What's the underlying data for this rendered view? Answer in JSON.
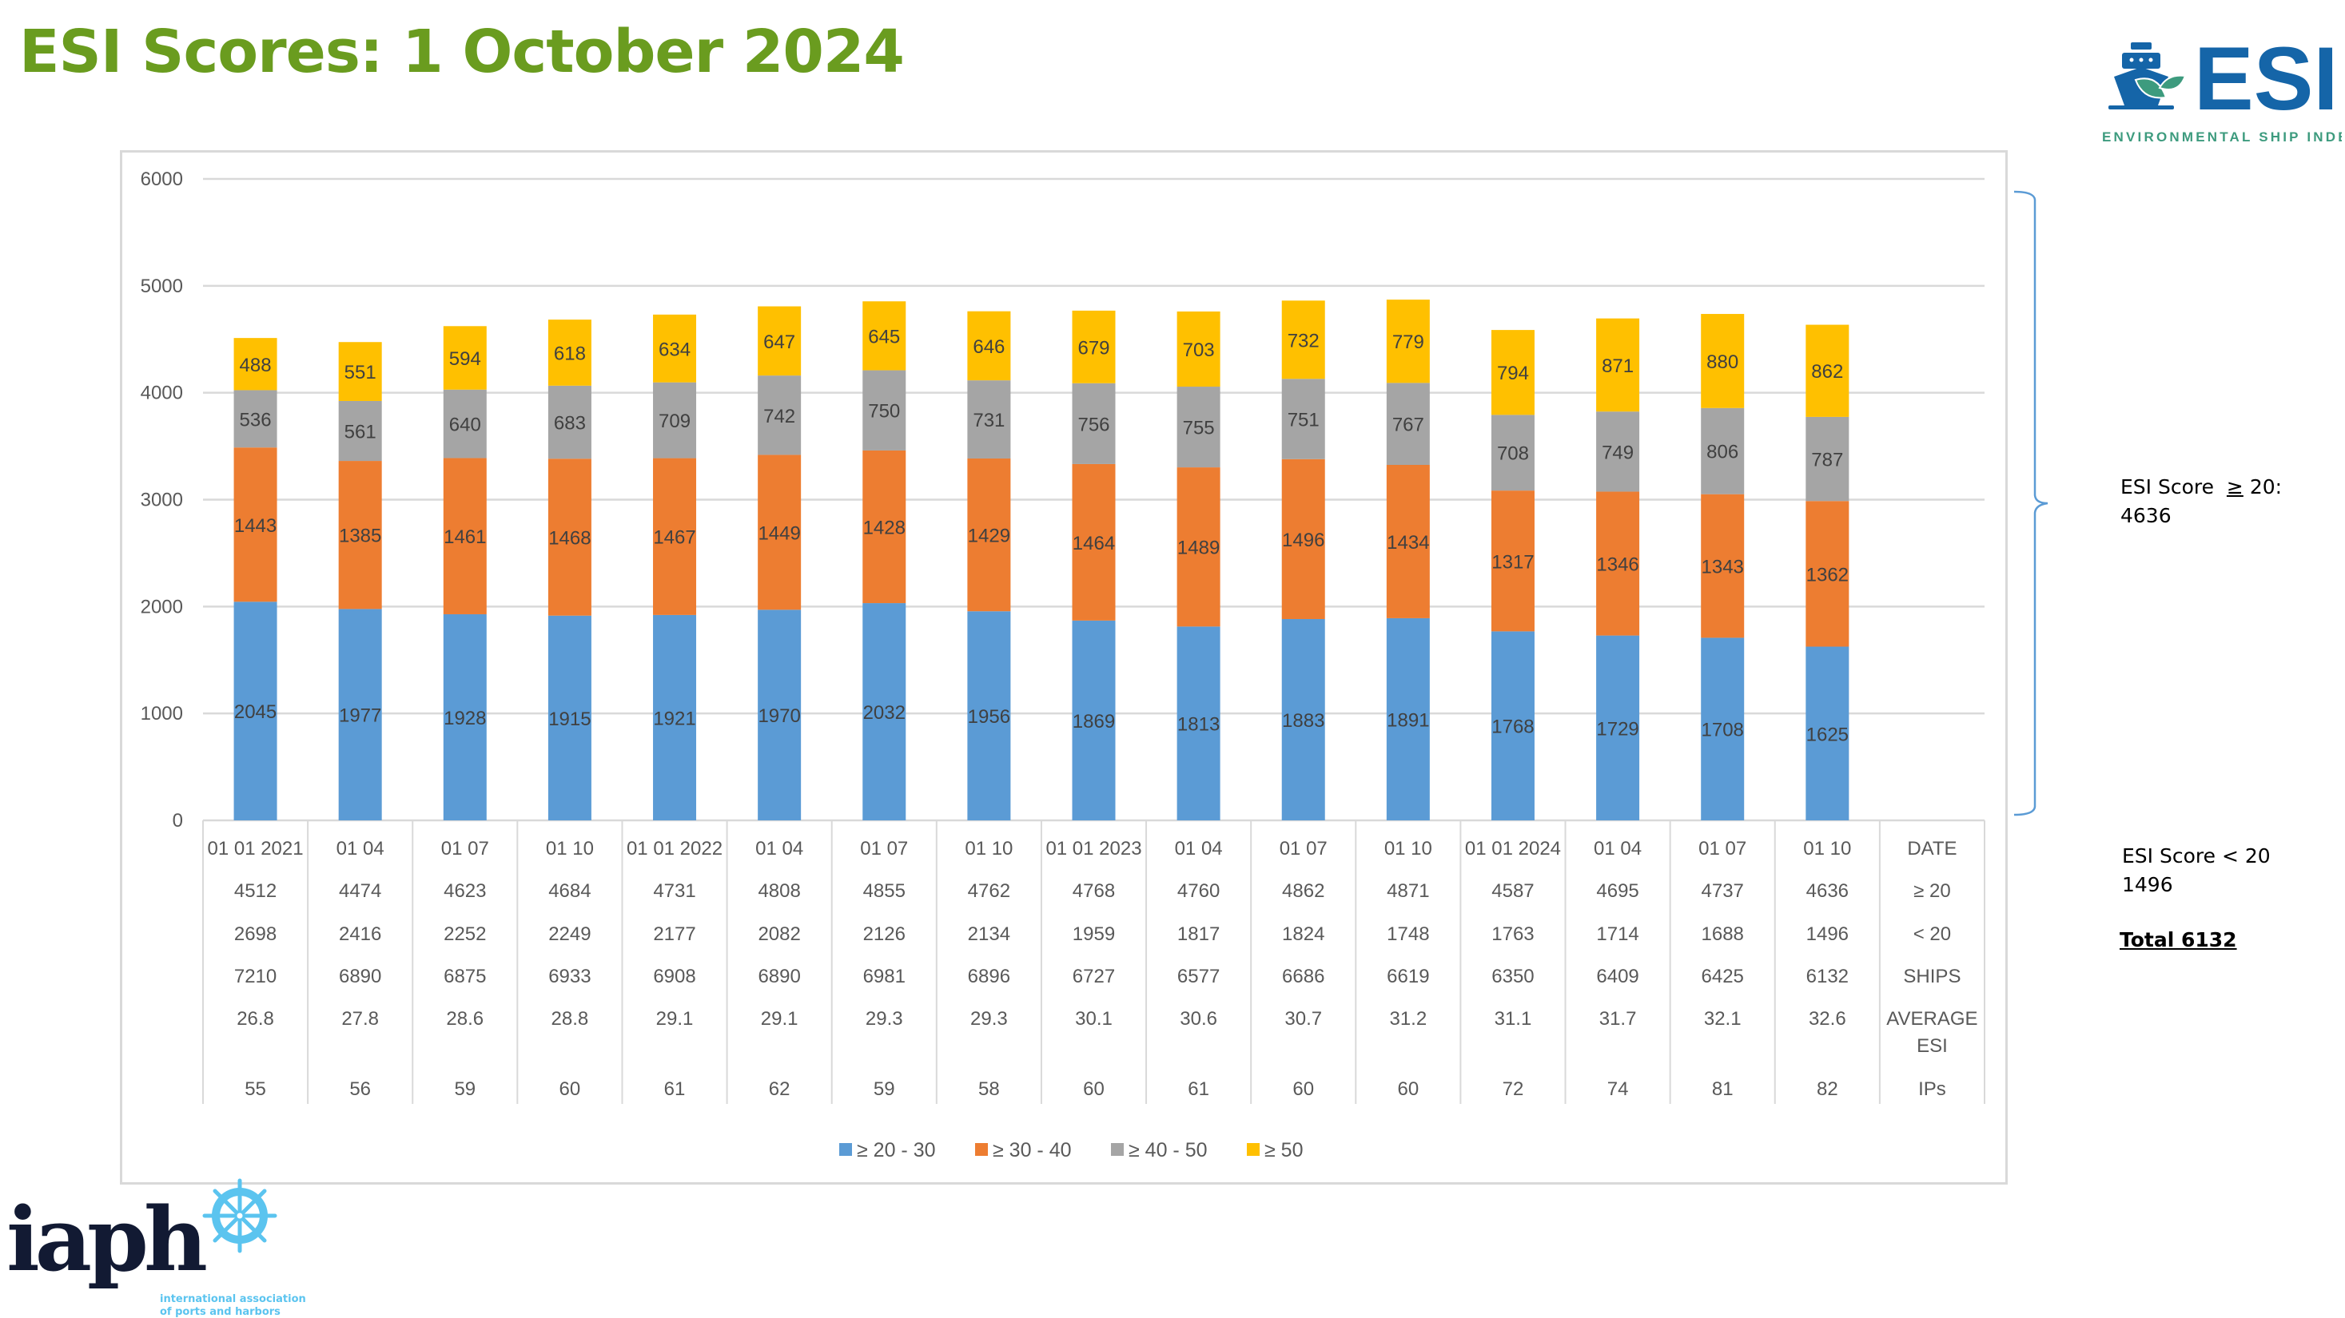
{
  "title": "ESI Scores: 1 October 2024",
  "chart_data": {
    "type": "bar",
    "stacked": true,
    "title": "",
    "ylim": [
      0,
      6000
    ],
    "yticks": [
      0,
      1000,
      2000,
      3000,
      4000,
      5000,
      6000
    ],
    "grid": true,
    "legend_position": "bottom",
    "categories": [
      "01 01 2021",
      "01 04",
      "01 07",
      "01 10",
      "01 01 2022",
      "01 04",
      "01 07",
      "01 10",
      "01 01 2023",
      "01 04",
      "01 07",
      "01 10",
      "01 01 2024",
      "01 04",
      "01 07",
      "01 10"
    ],
    "series": [
      {
        "name": "≥ 20 - 30",
        "color": "#5b9bd5",
        "values": [
          2045,
          1977,
          1928,
          1915,
          1921,
          1970,
          2032,
          1956,
          1869,
          1813,
          1883,
          1891,
          1768,
          1729,
          1708,
          1625
        ]
      },
      {
        "name": "≥  30 - 40",
        "color": "#ed7d31",
        "values": [
          1443,
          1385,
          1461,
          1468,
          1467,
          1449,
          1428,
          1429,
          1464,
          1489,
          1496,
          1434,
          1317,
          1346,
          1343,
          1362
        ]
      },
      {
        "name": "≥  40 - 50",
        "color": "#a5a5a5",
        "values": [
          536,
          561,
          640,
          683,
          709,
          742,
          750,
          731,
          756,
          755,
          751,
          767,
          708,
          749,
          806,
          787
        ]
      },
      {
        "name": "≥  50",
        "color": "#ffc000",
        "values": [
          488,
          551,
          594,
          618,
          634,
          647,
          645,
          646,
          679,
          703,
          732,
          779,
          794,
          871,
          880,
          862
        ]
      }
    ],
    "table": {
      "row_labels": [
        "DATE",
        "≥ 20",
        "< 20",
        "SHIPS",
        "AVERAGE ESI",
        "IPs"
      ],
      "rows": [
        [
          "4512",
          "4474",
          "4623",
          "4684",
          "4731",
          "4808",
          "4855",
          "4762",
          "4768",
          "4760",
          "4862",
          "4871",
          "4587",
          "4695",
          "4737",
          "4636"
        ],
        [
          "2698",
          "2416",
          "2252",
          "2249",
          "2177",
          "2082",
          "2126",
          "2134",
          "1959",
          "1817",
          "1824",
          "1748",
          "1763",
          "1714",
          "1688",
          "1496"
        ],
        [
          "7210",
          "6890",
          "6875",
          "6933",
          "6908",
          "6890",
          "6981",
          "6896",
          "6727",
          "6577",
          "6686",
          "6619",
          "6350",
          "6409",
          "6425",
          "6132"
        ],
        [
          "26.8",
          "27.8",
          "28.6",
          "28.8",
          "29.1",
          "29.1",
          "29.3",
          "29.3",
          "30.1",
          "30.6",
          "30.7",
          "31.2",
          "31.1",
          "31.7",
          "32.1",
          "32.6"
        ],
        [
          "55",
          "56",
          "59",
          "60",
          "61",
          "62",
          "59",
          "58",
          "60",
          "61",
          "60",
          "60",
          "72",
          "74",
          "81",
          "82"
        ]
      ]
    }
  },
  "side_notes": {
    "above_label": "ESI Score",
    "above_symbol": "≥",
    "above_threshold": " 20:",
    "above_value": "4636",
    "below_label": "ESI Score < 20",
    "below_value": "1496",
    "total": "Total 6132"
  },
  "logos": {
    "esi": {
      "text": "ESI",
      "subtitle": "ENVIRONMENTAL SHIP INDEX",
      "color": "#1565a8",
      "accent": "#3d9b7e"
    },
    "iaph": {
      "text": "iaph",
      "subtitle_line1": "international association",
      "subtitle_line2": "of ports and harbors",
      "color": "#121a33",
      "accent": "#5bc4ef"
    }
  }
}
